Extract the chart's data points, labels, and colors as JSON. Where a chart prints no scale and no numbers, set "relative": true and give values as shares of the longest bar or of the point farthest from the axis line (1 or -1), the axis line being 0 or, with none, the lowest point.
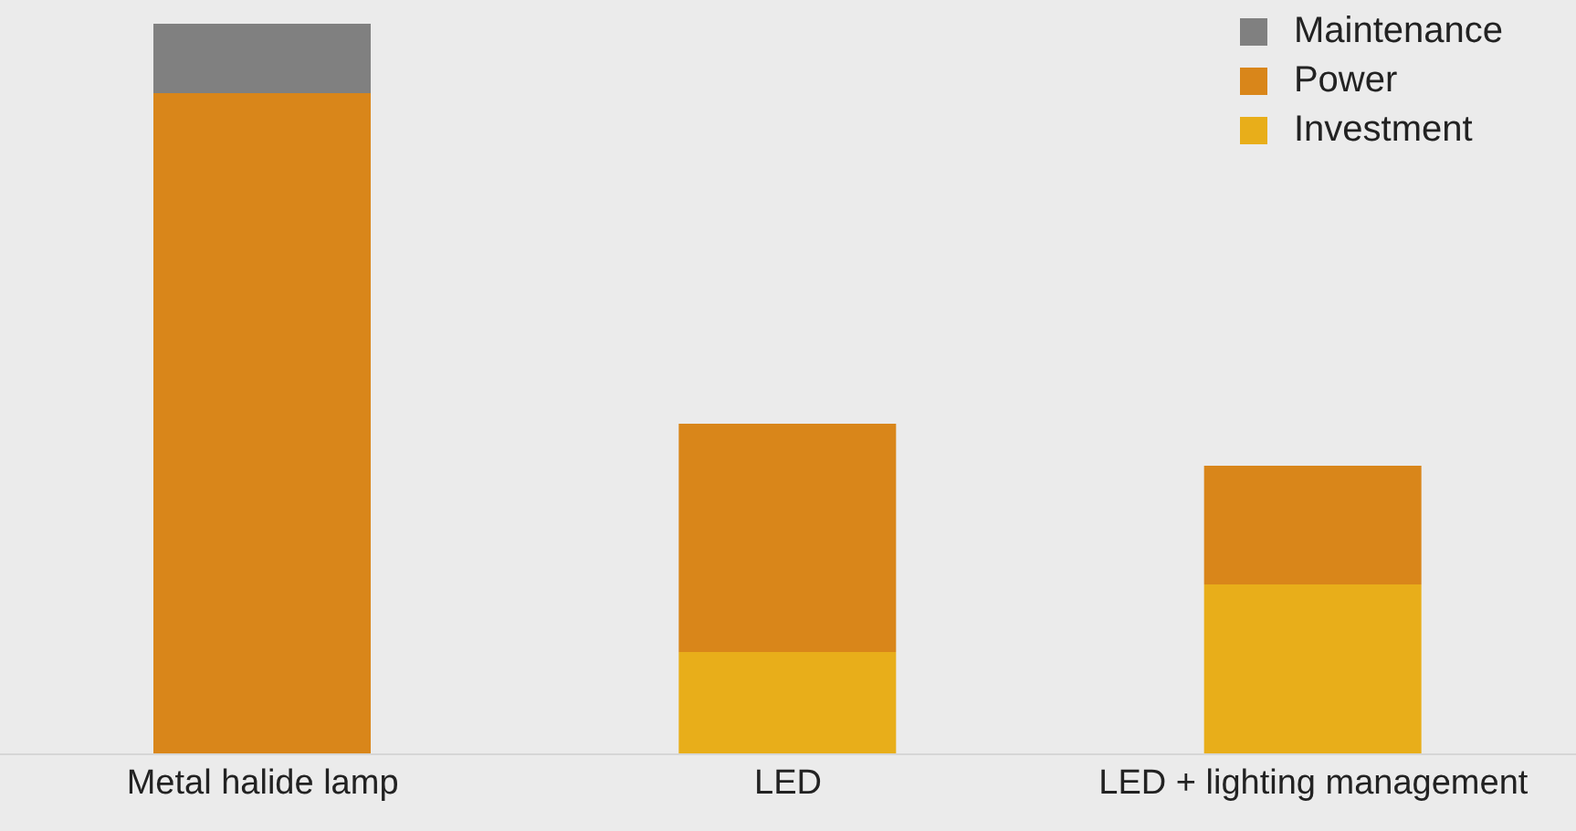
{
  "chart_data": {
    "type": "bar",
    "stacked": true,
    "relative": true,
    "legend": "top right",
    "categories": [
      "Metal halide lamp",
      "LED",
      "LED + lighting management"
    ],
    "series": [
      {
        "name": "Investment",
        "color": "#e8ae1a",
        "values": [
          null,
          0.14,
          0.2325
        ]
      },
      {
        "name": "Power",
        "color": "#d9861a",
        "values": [
          0.905,
          0.3125,
          0.1625
        ]
      },
      {
        "name": "Maintenance",
        "color": "#808080",
        "values": [
          0.095,
          null,
          null
        ]
      }
    ]
  }
}
